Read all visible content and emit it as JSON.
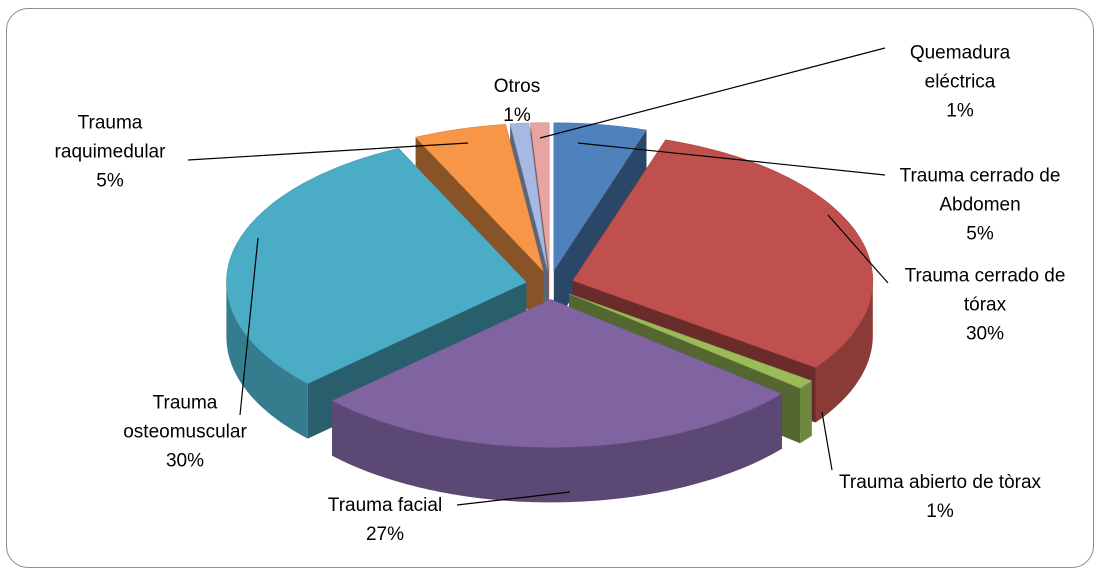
{
  "chart_data": {
    "type": "pie",
    "categories": [
      "Trauma cerrado de Abdomen",
      "Trauma cerrado de tórax",
      "Trauma abierto de tòrax",
      "Trauma facial",
      "Trauma osteomuscular",
      "Trauma raquimedular",
      "Otros",
      "Quemadura eléctrica"
    ],
    "values": [
      5,
      30,
      1,
      27,
      30,
      5,
      1,
      1
    ],
    "value_labels": [
      "5%",
      "30%",
      "1%",
      "27%",
      "30%",
      "5%",
      "1%",
      "1%"
    ],
    "colors": [
      "#4f81bd",
      "#c0504d",
      "#9bbb59",
      "#8064a2",
      "#4bacc6",
      "#f79646",
      "#a6b9e2",
      "#e8a3a3"
    ]
  }
}
